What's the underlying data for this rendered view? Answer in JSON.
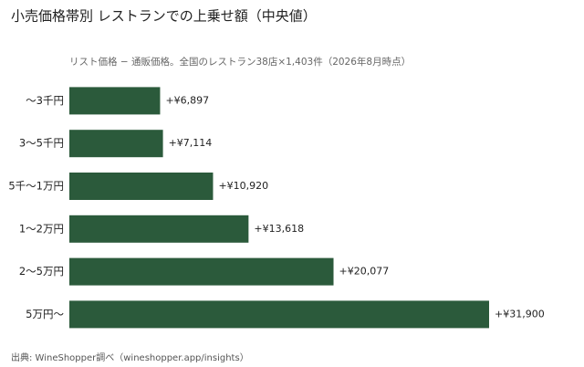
{
  "chart_data": {
    "type": "bar",
    "orientation": "horizontal",
    "title": "小売価格帯別 レストランでの上乗せ額（中央値）",
    "subtitle": "リスト価格 − 通販価格。全国のレストラン38店×1,403件（2026年8月時点）",
    "source": "出典: WineShopper調べ（wineshopper.app/insights）",
    "categories": [
      "〜3千円",
      "3〜5千円",
      "5千〜1万円",
      "1〜2万円",
      "2〜5万円",
      "5万円〜"
    ],
    "values": [
      6897,
      7114,
      10920,
      13618,
      20077,
      31900
    ],
    "value_labels": [
      "+¥6,897",
      "+¥7,114",
      "+¥10,920",
      "+¥13,618",
      "+¥20,077",
      "+¥31,900"
    ],
    "color": "#2b5a3b"
  }
}
